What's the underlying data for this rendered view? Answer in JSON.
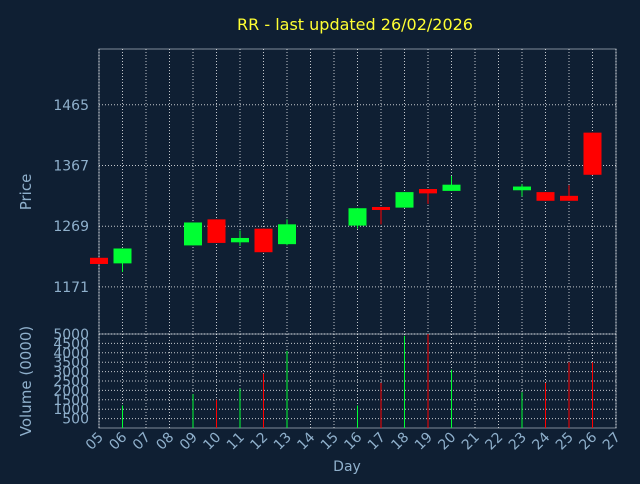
{
  "title": "RR - last updated 26/02/2026",
  "colors": {
    "background": "#0f1f33",
    "text": "#8fb0cc",
    "title": "#ffff33",
    "grid": "#ffffff",
    "up": "#00ff33",
    "down": "#ff0000"
  },
  "chart_data": [
    {
      "type": "candlestick",
      "ylabel": "Price",
      "ylim": [
        1095,
        1555
      ],
      "yticks": [
        1171,
        1269,
        1367,
        1465
      ],
      "grid": true,
      "candles": [
        {
          "day": "05",
          "open": 1218,
          "close": 1208,
          "high": 1218,
          "low": 1208
        },
        {
          "day": "06",
          "open": 1209,
          "close": 1233,
          "high": 1233,
          "low": 1195
        },
        {
          "day": "09",
          "open": 1238,
          "close": 1275,
          "high": 1275,
          "low": 1238
        },
        {
          "day": "10",
          "open": 1280,
          "close": 1242,
          "high": 1280,
          "low": 1242
        },
        {
          "day": "11",
          "open": 1243,
          "close": 1250,
          "high": 1262,
          "low": 1237
        },
        {
          "day": "12",
          "open": 1265,
          "close": 1227,
          "high": 1265,
          "low": 1227
        },
        {
          "day": "13",
          "open": 1240,
          "close": 1272,
          "high": 1280,
          "low": 1238
        },
        {
          "day": "16",
          "open": 1270,
          "close": 1298,
          "high": 1298,
          "low": 1265
        },
        {
          "day": "17",
          "open": 1300,
          "close": 1297,
          "high": 1300,
          "low": 1272
        },
        {
          "day": "18",
          "open": 1299,
          "close": 1324,
          "high": 1324,
          "low": 1299
        },
        {
          "day": "19",
          "open": 1329,
          "close": 1322,
          "high": 1329,
          "low": 1305
        },
        {
          "day": "20",
          "open": 1326,
          "close": 1336,
          "high": 1350,
          "low": 1326
        },
        {
          "day": "23",
          "open": 1327,
          "close": 1333,
          "high": 1337,
          "low": 1317
        },
        {
          "day": "24",
          "open": 1324,
          "close": 1310,
          "high": 1324,
          "low": 1310
        },
        {
          "day": "25",
          "open": 1318,
          "close": 1310,
          "high": 1335,
          "low": 1310
        },
        {
          "day": "26",
          "open": 1420,
          "close": 1352,
          "high": 1420,
          "low": 1352
        }
      ]
    },
    {
      "type": "bar",
      "ylabel": "Volume (0000)",
      "xlabel": "Day",
      "ylim": [
        0,
        5000
      ],
      "yticks": [
        500,
        1000,
        1500,
        2000,
        2500,
        3000,
        3500,
        4000,
        4500,
        5000
      ],
      "grid": true,
      "categories": [
        "05",
        "06",
        "07",
        "08",
        "09",
        "10",
        "11",
        "12",
        "13",
        "14",
        "15",
        "16",
        "17",
        "18",
        "19",
        "20",
        "21",
        "22",
        "23",
        "24",
        "25",
        "26",
        "27"
      ],
      "bars": [
        {
          "day": "06",
          "value": 1200,
          "direction": "up"
        },
        {
          "day": "09",
          "value": 1800,
          "direction": "up"
        },
        {
          "day": "10",
          "value": 1500,
          "direction": "down"
        },
        {
          "day": "11",
          "value": 2100,
          "direction": "up"
        },
        {
          "day": "12",
          "value": 2900,
          "direction": "down"
        },
        {
          "day": "13",
          "value": 4100,
          "direction": "up"
        },
        {
          "day": "16",
          "value": 1200,
          "direction": "up"
        },
        {
          "day": "17",
          "value": 2400,
          "direction": "down"
        },
        {
          "day": "18",
          "value": 4900,
          "direction": "up"
        },
        {
          "day": "19",
          "value": 5000,
          "direction": "down"
        },
        {
          "day": "20",
          "value": 3100,
          "direction": "up"
        },
        {
          "day": "23",
          "value": 1900,
          "direction": "up"
        },
        {
          "day": "24",
          "value": 2400,
          "direction": "down"
        },
        {
          "day": "25",
          "value": 3500,
          "direction": "down"
        },
        {
          "day": "26",
          "value": 3500,
          "direction": "down"
        }
      ]
    }
  ]
}
